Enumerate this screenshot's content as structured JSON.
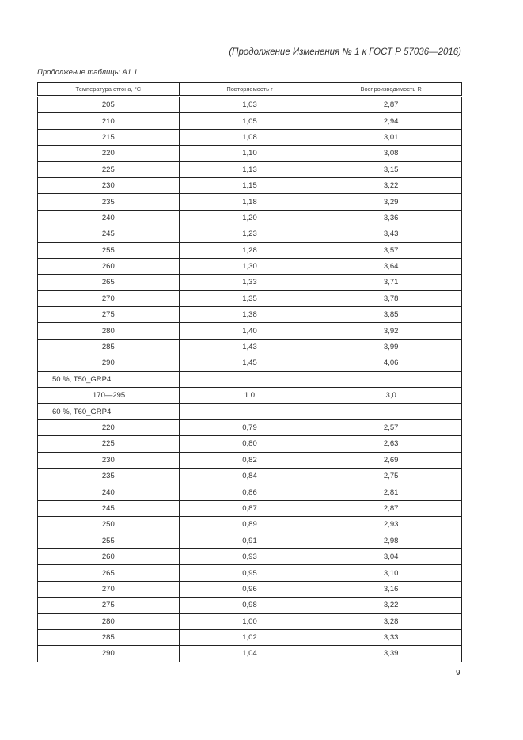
{
  "running_header": "(Продолжение Изменения № 1 к ГОСТ Р 57036—2016)",
  "table_caption": "Продолжение таблицы А1.1",
  "columns": [
    "Температура отгона, °С",
    "Повторяемость r",
    "Воспроизводимость R"
  ],
  "rows": [
    [
      "205",
      "1,03",
      "2,87"
    ],
    [
      "210",
      "1,05",
      "2,94"
    ],
    [
      "215",
      "1,08",
      "3,01"
    ],
    [
      "220",
      "1,10",
      "3,08"
    ],
    [
      "225",
      "1,13",
      "3,15"
    ],
    [
      "230",
      "1,15",
      "3,22"
    ],
    [
      "235",
      "1,18",
      "3,29"
    ],
    [
      "240",
      "1,20",
      "3,36"
    ],
    [
      "245",
      "1,23",
      "3,43"
    ],
    [
      "255",
      "1,28",
      "3,57"
    ],
    [
      "260",
      "1,30",
      "3,64"
    ],
    [
      "265",
      "1,33",
      "3,71"
    ],
    [
      "270",
      "1,35",
      "3,78"
    ],
    [
      "275",
      "1,38",
      "3,85"
    ],
    [
      "280",
      "1,40",
      "3,92"
    ],
    [
      "285",
      "1,43",
      "3,99"
    ],
    [
      "290",
      "1,45",
      "4,06"
    ],
    [
      "50 %, T50_GRP4",
      "",
      ""
    ],
    [
      "170—295",
      "1.0",
      "3,0"
    ],
    [
      "60 %, T60_GRP4",
      "",
      ""
    ],
    [
      "220",
      "0,79",
      "2,57"
    ],
    [
      "225",
      "0,80",
      "2,63"
    ],
    [
      "230",
      "0,82",
      "2,69"
    ],
    [
      "235",
      "0,84",
      "2,75"
    ],
    [
      "240",
      "0,86",
      "2,81"
    ],
    [
      "245",
      "0,87",
      "2,87"
    ],
    [
      "250",
      "0,89",
      "2,93"
    ],
    [
      "255",
      "0,91",
      "2,98"
    ],
    [
      "260",
      "0,93",
      "3,04"
    ],
    [
      "265",
      "0,95",
      "3,10"
    ],
    [
      "270",
      "0,96",
      "3,16"
    ],
    [
      "275",
      "0,98",
      "3,22"
    ],
    [
      "280",
      "1,00",
      "3,28"
    ],
    [
      "285",
      "1,02",
      "3,33"
    ],
    [
      "290",
      "1,04",
      "3,39"
    ]
  ],
  "page_number": "9"
}
